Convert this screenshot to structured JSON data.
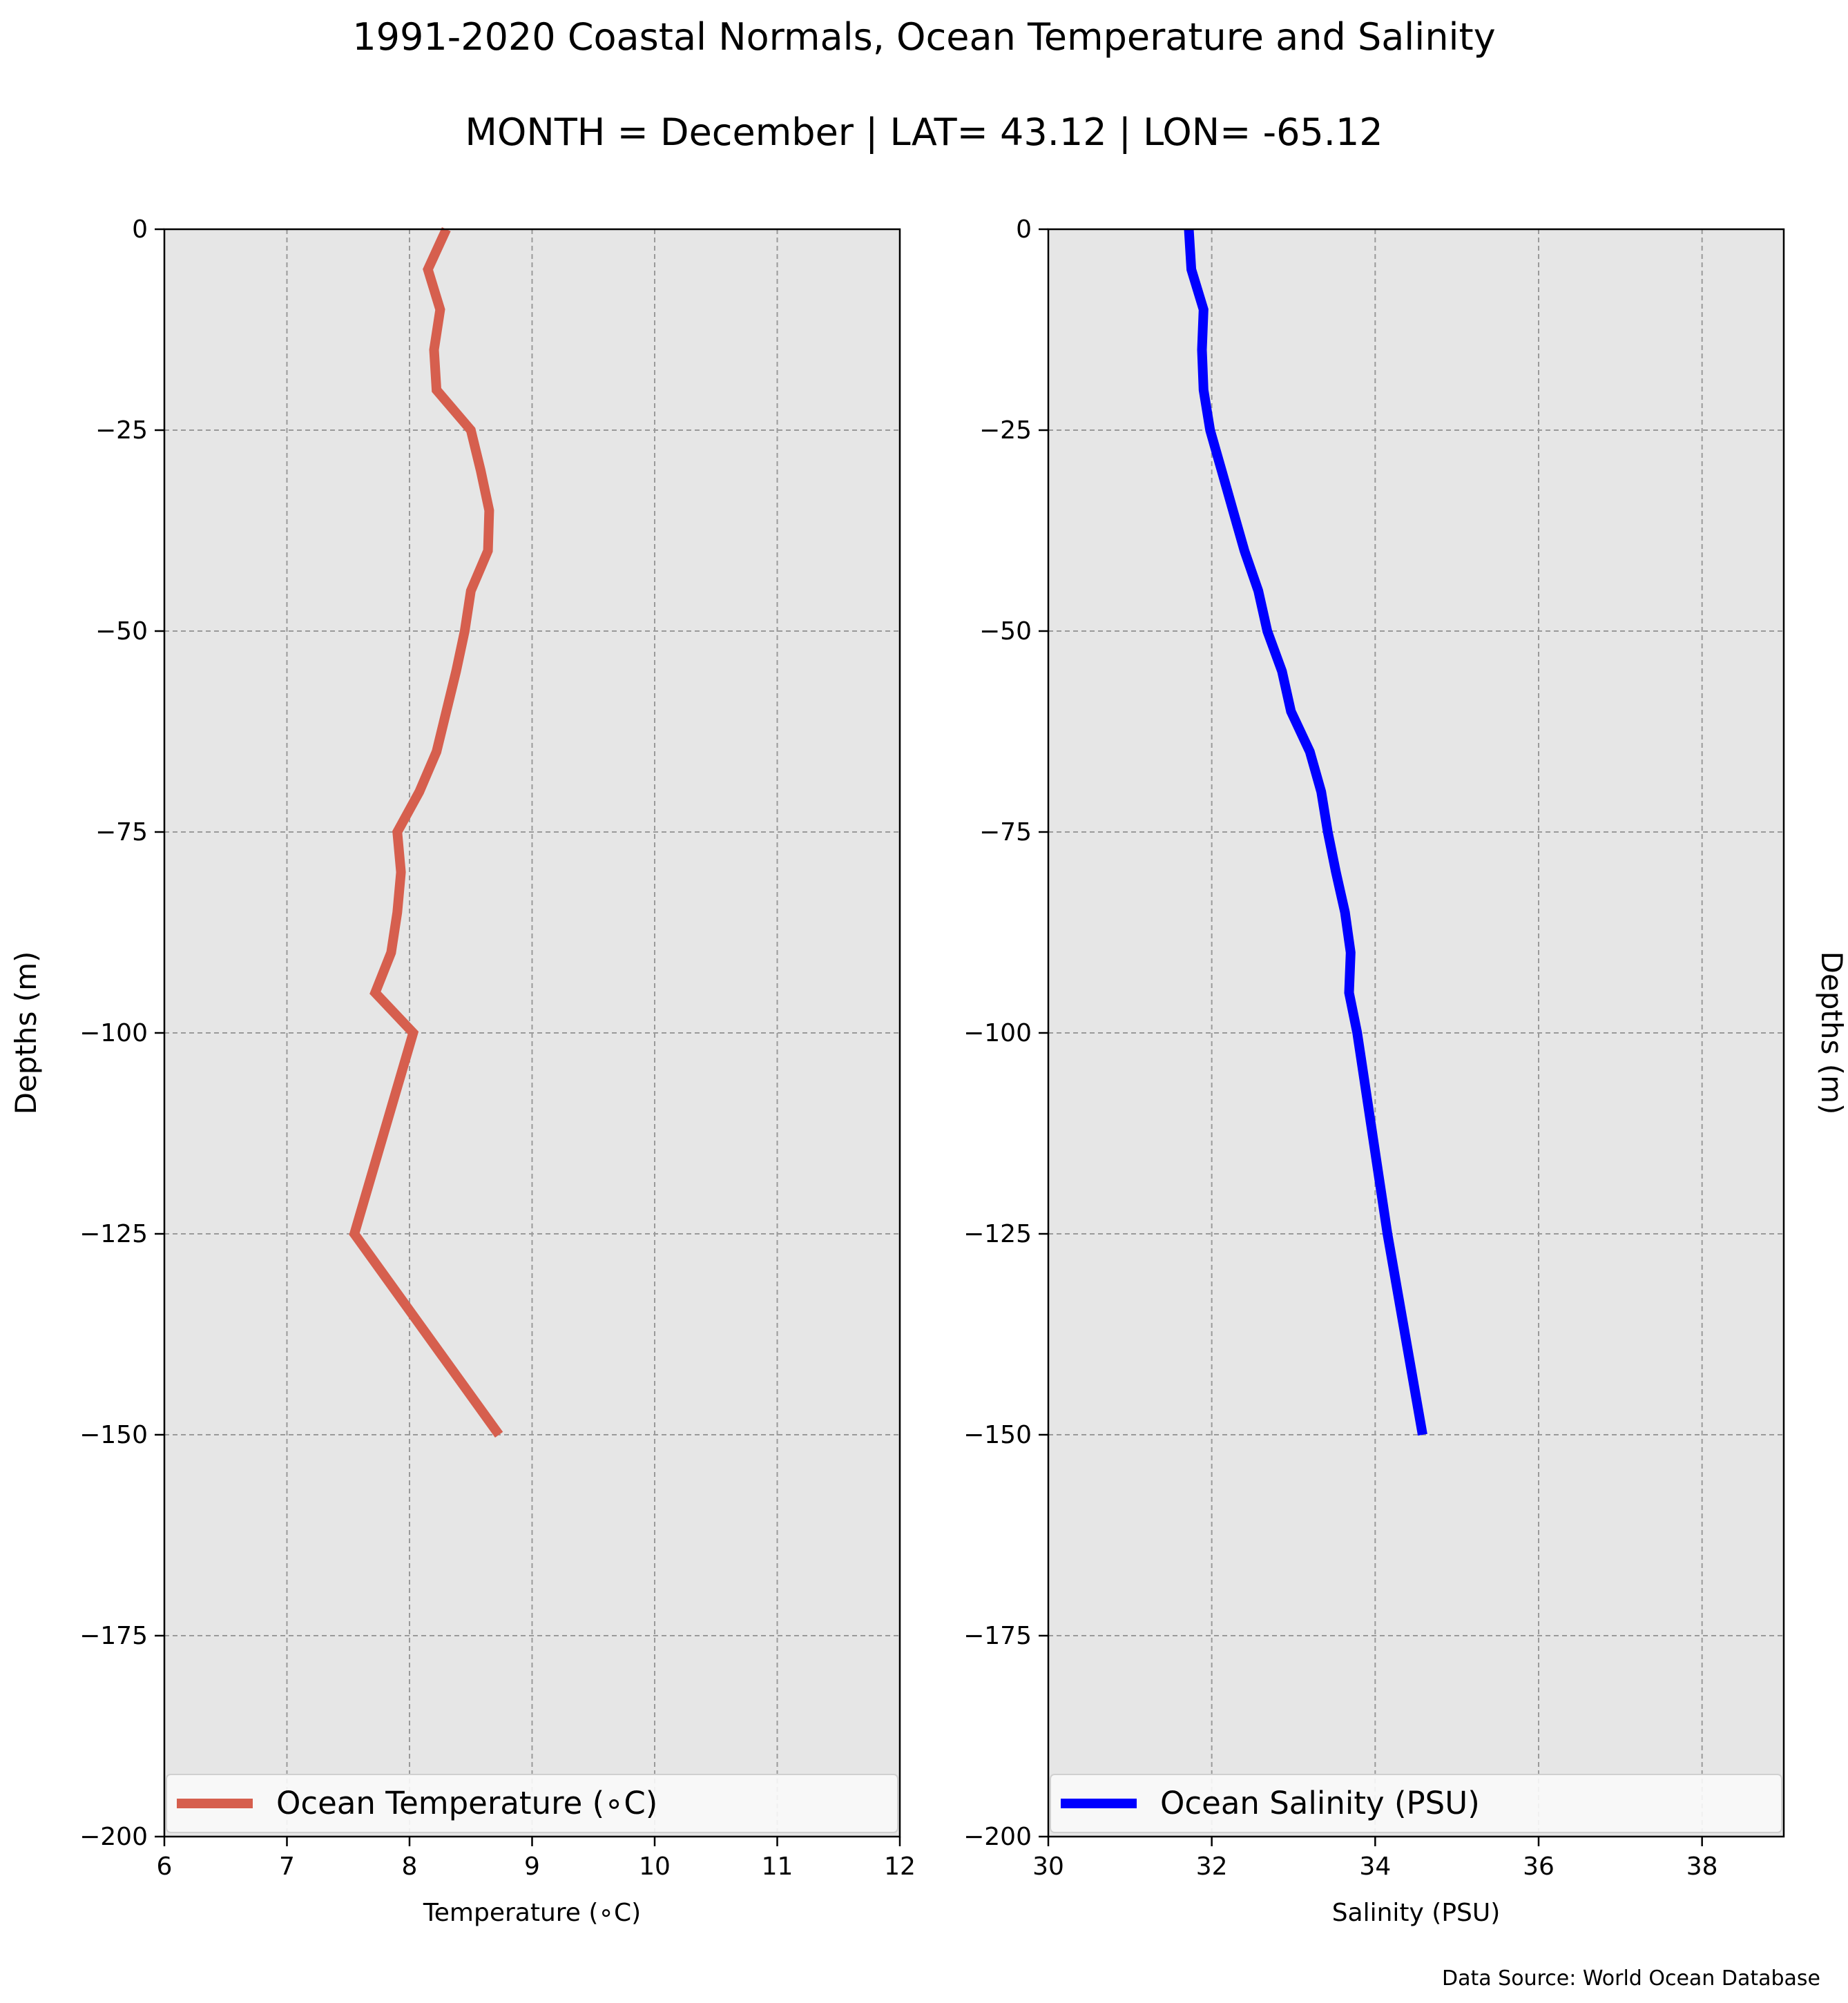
{
  "figure": {
    "title": "1991-2020 Coastal Normals, Ocean Temperature and Salinity",
    "subtitle": "MONTH = December | LAT= 43.12 | LON= -65.12",
    "source": "Data Source: World Ocean Database"
  },
  "chart_data": [
    {
      "type": "line",
      "xlabel": "Temperature (∘C)",
      "ylabel": "Depths (m)",
      "xlim": [
        6,
        12
      ],
      "ylim": [
        -200,
        0
      ],
      "xticks": [
        6,
        7,
        8,
        9,
        10,
        11,
        12
      ],
      "yticks": [
        0,
        -25,
        -50,
        -75,
        -100,
        -125,
        -150,
        -175,
        -200
      ],
      "grid": true,
      "legend_position": "bottom",
      "series": [
        {
          "name": "Ocean Temperature (∘C)",
          "color": "#d65f4e",
          "points": [
            [
              8.3,
              0
            ],
            [
              8.15,
              -5
            ],
            [
              8.25,
              -10
            ],
            [
              8.2,
              -15
            ],
            [
              8.22,
              -20
            ],
            [
              8.5,
              -25
            ],
            [
              8.58,
              -30
            ],
            [
              8.65,
              -35
            ],
            [
              8.64,
              -40
            ],
            [
              8.5,
              -45
            ],
            [
              8.45,
              -50
            ],
            [
              8.38,
              -55
            ],
            [
              8.3,
              -60
            ],
            [
              8.22,
              -65
            ],
            [
              8.08,
              -70
            ],
            [
              7.9,
              -75
            ],
            [
              7.93,
              -80
            ],
            [
              7.9,
              -85
            ],
            [
              7.85,
              -90
            ],
            [
              7.72,
              -95
            ],
            [
              8.03,
              -100
            ],
            [
              7.55,
              -125
            ],
            [
              8.73,
              -150
            ]
          ]
        }
      ]
    },
    {
      "type": "line",
      "xlabel": "Salinity (PSU)",
      "ylabel": "Depths (m)",
      "xlim": [
        30,
        39
      ],
      "ylim": [
        -200,
        0
      ],
      "xticks": [
        30,
        32,
        34,
        36,
        38
      ],
      "yticks": [
        0,
        -25,
        -50,
        -75,
        -100,
        -125,
        -150,
        -175,
        -200
      ],
      "grid": true,
      "legend_position": "bottom",
      "series": [
        {
          "name": "Ocean Salinity (PSU)",
          "color": "#0000ff",
          "points": [
            [
              31.72,
              0
            ],
            [
              31.75,
              -5
            ],
            [
              31.9,
              -10
            ],
            [
              31.88,
              -15
            ],
            [
              31.9,
              -20
            ],
            [
              31.98,
              -25
            ],
            [
              32.12,
              -30
            ],
            [
              32.26,
              -35
            ],
            [
              32.4,
              -40
            ],
            [
              32.57,
              -45
            ],
            [
              32.68,
              -50
            ],
            [
              32.86,
              -55
            ],
            [
              32.97,
              -60
            ],
            [
              33.2,
              -65
            ],
            [
              33.34,
              -70
            ],
            [
              33.42,
              -75
            ],
            [
              33.52,
              -80
            ],
            [
              33.63,
              -85
            ],
            [
              33.7,
              -90
            ],
            [
              33.68,
              -95
            ],
            [
              33.78,
              -100
            ],
            [
              34.15,
              -125
            ],
            [
              34.58,
              -150
            ]
          ]
        }
      ]
    }
  ]
}
